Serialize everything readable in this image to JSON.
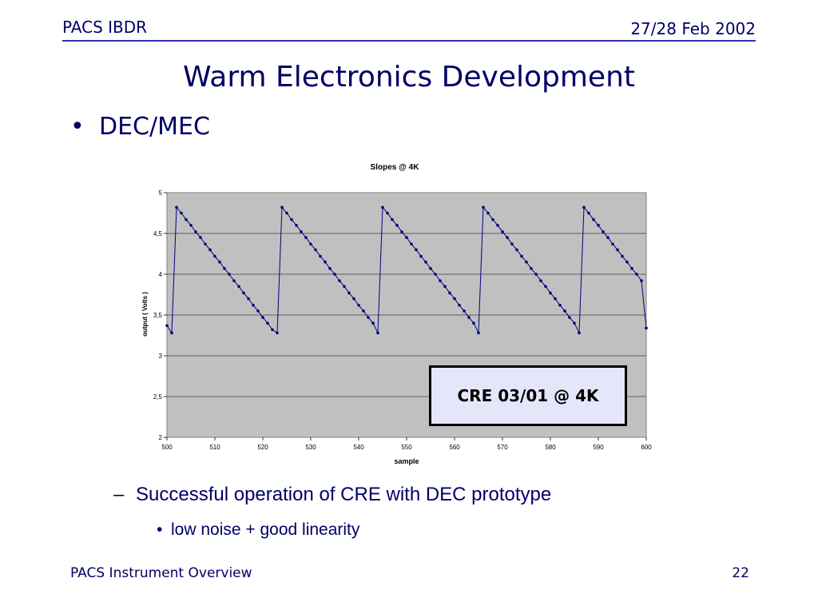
{
  "header": {
    "left": "PACS IBDR",
    "right": "27/28 Feb 2002"
  },
  "slide": {
    "title": "Warm Electronics Development",
    "bullet": "DEC/MEC",
    "bullet_marker": "•",
    "sub_bullet_marker": "–",
    "sub_bullet": "Successful operation of CRE with DEC prototype",
    "sub_sub_bullet_marker": "•",
    "sub_sub_bullet": "low noise + good linearity",
    "callout": "CRE 03/01 @ 4K"
  },
  "footer": {
    "left": "PACS Instrument Overview",
    "right": "22"
  },
  "chart_data": {
    "type": "line",
    "title": "Slopes @ 4K",
    "xlabel": "sample",
    "ylabel": "output ( Volts )",
    "xlim": [
      500,
      600
    ],
    "ylim": [
      2,
      5
    ],
    "x_ticks": [
      500,
      510,
      520,
      530,
      540,
      550,
      560,
      570,
      580,
      590,
      600
    ],
    "y_ticks": [
      2,
      2.5,
      3,
      3.5,
      4,
      4.5,
      5
    ],
    "y_tick_labels": [
      "2",
      "2,5",
      "3",
      "3,5",
      "4",
      "4,5",
      "5"
    ],
    "grid": "horizontal",
    "plot_background": "#c0c0c0",
    "line_color": "#000080",
    "series": [
      {
        "x": [
          500,
          501,
          502,
          503,
          504,
          505,
          506,
          507,
          508,
          509,
          510,
          511,
          512,
          513,
          514,
          515,
          516,
          517,
          518,
          519,
          520,
          521,
          522,
          523,
          524,
          525,
          526,
          527,
          528,
          529,
          530,
          531,
          532,
          533,
          534,
          535,
          536,
          537,
          538,
          539,
          540,
          541,
          542,
          543,
          544,
          545,
          546,
          547,
          548,
          549,
          550,
          551,
          552,
          553,
          554,
          555,
          556,
          557,
          558,
          559,
          560,
          561,
          562,
          563,
          564,
          565,
          566,
          567,
          568,
          569,
          570,
          571,
          572,
          573,
          574,
          575,
          576,
          577,
          578,
          579,
          580,
          581,
          582,
          583,
          584,
          585,
          586,
          587,
          588,
          589,
          590,
          591,
          592,
          593,
          594,
          595,
          596,
          597,
          598,
          599,
          600
        ],
        "y": [
          3.37,
          3.28,
          4.82,
          4.75,
          4.67,
          4.6,
          4.52,
          4.45,
          4.37,
          4.3,
          4.22,
          4.15,
          4.07,
          4.0,
          3.92,
          3.85,
          3.77,
          3.7,
          3.62,
          3.55,
          3.47,
          3.4,
          3.32,
          3.28,
          4.82,
          4.75,
          4.67,
          4.6,
          4.52,
          4.45,
          4.37,
          4.3,
          4.22,
          4.15,
          4.07,
          4.0,
          3.92,
          3.85,
          3.77,
          3.7,
          3.62,
          3.55,
          3.47,
          3.4,
          3.28,
          4.82,
          4.75,
          4.67,
          4.6,
          4.52,
          4.45,
          4.37,
          4.3,
          4.22,
          4.15,
          4.07,
          4.0,
          3.92,
          3.85,
          3.77,
          3.7,
          3.62,
          3.55,
          3.47,
          3.4,
          3.28,
          4.82,
          4.75,
          4.67,
          4.6,
          4.52,
          4.45,
          4.37,
          4.3,
          4.22,
          4.15,
          4.07,
          4.0,
          3.92,
          3.85,
          3.77,
          3.7,
          3.62,
          3.55,
          3.47,
          3.4,
          3.28,
          4.82,
          4.75,
          4.67,
          4.6,
          4.52,
          4.45,
          4.37,
          4.3,
          4.22,
          4.15,
          4.07,
          4.0,
          3.92,
          3.34
        ]
      }
    ]
  }
}
